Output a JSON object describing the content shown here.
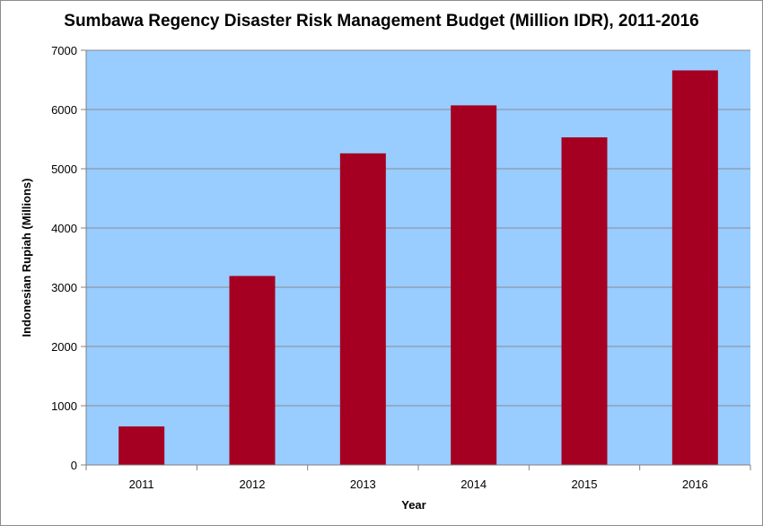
{
  "chart_data": {
    "type": "bar",
    "title": "Sumbawa Regency Disaster Risk Management Budget (Million IDR), 2011-2016",
    "xlabel": "Year",
    "ylabel": "Indonesian Rupiah (Millions)",
    "categories": [
      "2011",
      "2012",
      "2013",
      "2014",
      "2015",
      "2016"
    ],
    "values": [
      650,
      3190,
      5260,
      6070,
      5530,
      6660
    ],
    "ylim": [
      0,
      7000
    ],
    "yticks": [
      0,
      1000,
      2000,
      3000,
      4000,
      5000,
      6000,
      7000
    ],
    "grid": true,
    "legend": "none",
    "colors": {
      "plot_background": "#99ccff",
      "bar": "#a50021",
      "gridline": "#8c8c8c",
      "axis": "#808080"
    }
  }
}
